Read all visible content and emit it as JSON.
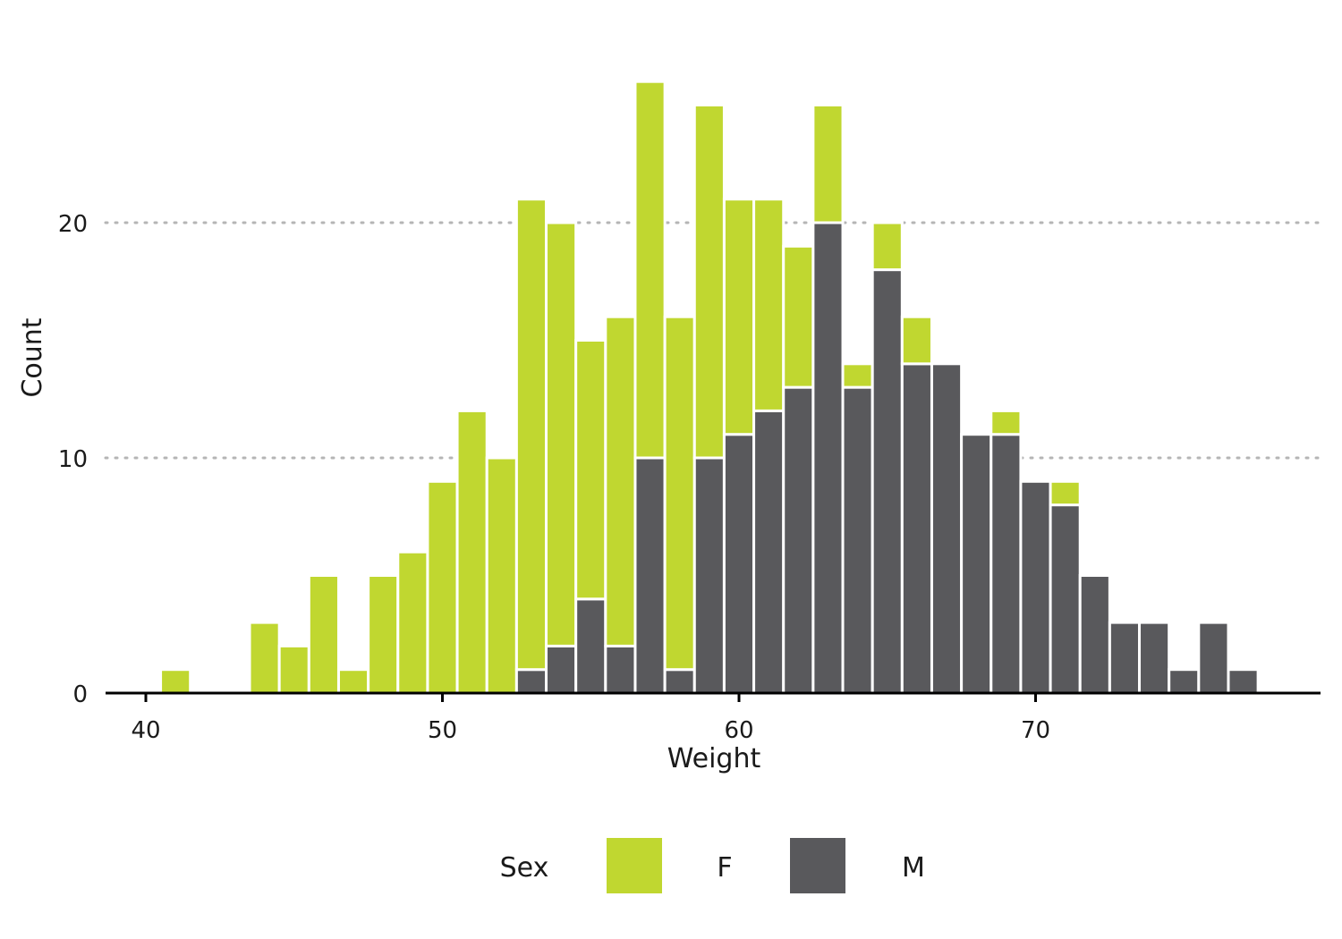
{
  "chart_data": {
    "type": "bar",
    "stacked": true,
    "title": "",
    "xlabel": "Weight",
    "ylabel": "Count",
    "xlim": [
      39,
      80
    ],
    "ylim": [
      0,
      26
    ],
    "x_ticks": [
      40,
      50,
      60,
      70
    ],
    "y_ticks": [
      0,
      10,
      20
    ],
    "grid": "horizontal dotted",
    "legend_placement": "bottom",
    "bin_width": 1,
    "x": [
      41,
      44,
      45,
      46,
      47,
      48,
      49,
      50,
      51,
      52,
      53,
      54,
      55,
      56,
      57,
      58,
      59,
      60,
      61,
      62,
      63,
      64,
      65,
      66,
      67,
      68,
      69,
      70,
      71,
      72,
      73,
      74,
      75,
      76,
      77
    ],
    "series": [
      {
        "name": "M",
        "color": "#59595c",
        "values": [
          0,
          0,
          0,
          0,
          0,
          0,
          0,
          0,
          0,
          0,
          1,
          2,
          4,
          2,
          10,
          1,
          10,
          11,
          12,
          13,
          20,
          13,
          18,
          14,
          14,
          11,
          11,
          9,
          8,
          5,
          3,
          3,
          1,
          3,
          1
        ]
      },
      {
        "name": "F",
        "color": "#c0d730",
        "values": [
          1,
          3,
          2,
          5,
          1,
          5,
          6,
          9,
          12,
          10,
          20,
          18,
          11,
          14,
          16,
          15,
          15,
          10,
          9,
          6,
          5,
          1,
          2,
          2,
          0,
          0,
          1,
          0,
          1,
          0,
          0,
          0,
          0,
          0,
          0
        ]
      }
    ],
    "legend": {
      "title": "Sex",
      "entries": [
        {
          "label": "F",
          "color": "#c0d730"
        },
        {
          "label": "M",
          "color": "#59595c"
        }
      ]
    }
  }
}
